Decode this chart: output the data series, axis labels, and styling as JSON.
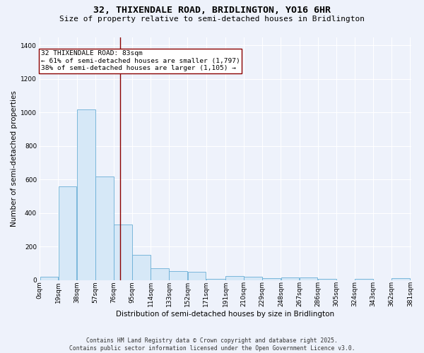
{
  "title_line1": "32, THIXENDALE ROAD, BRIDLINGTON, YO16 6HR",
  "title_line2": "Size of property relative to semi-detached houses in Bridlington",
  "xlabel": "Distribution of semi-detached houses by size in Bridlington",
  "ylabel": "Number of semi-detached properties",
  "footer_line1": "Contains HM Land Registry data © Crown copyright and database right 2025.",
  "footer_line2": "Contains public sector information licensed under the Open Government Licence v3.0.",
  "annotation_line1": "32 THIXENDALE ROAD: 83sqm",
  "annotation_line2": "← 61% of semi-detached houses are smaller (1,797)",
  "annotation_line3": "38% of semi-detached houses are larger (1,105) →",
  "bin_edges": [
    0,
    19,
    38,
    57,
    76,
    95,
    114,
    133,
    152,
    171,
    191,
    210,
    229,
    248,
    267,
    286,
    305,
    324,
    343,
    362,
    381
  ],
  "bar_values": [
    20,
    560,
    1020,
    620,
    330,
    150,
    70,
    55,
    50,
    5,
    25,
    20,
    10,
    15,
    15,
    5,
    0,
    5,
    0,
    10
  ],
  "bar_color": "#d6e8f7",
  "bar_edge_color": "#6aaed6",
  "vline_color": "#8b0000",
  "vline_x": 83,
  "ylim": [
    0,
    1450
  ],
  "yticks": [
    0,
    200,
    400,
    600,
    800,
    1000,
    1200,
    1400
  ],
  "background_color": "#eef2fb",
  "grid_color": "#ffffff",
  "annotation_box_color": "#ffffff",
  "annotation_box_edge": "#8b0000",
  "title_fontsize": 9.5,
  "subtitle_fontsize": 8.0,
  "axis_label_fontsize": 7.5,
  "tick_fontsize": 6.5,
  "annotation_fontsize": 6.8,
  "footer_fontsize": 5.8
}
